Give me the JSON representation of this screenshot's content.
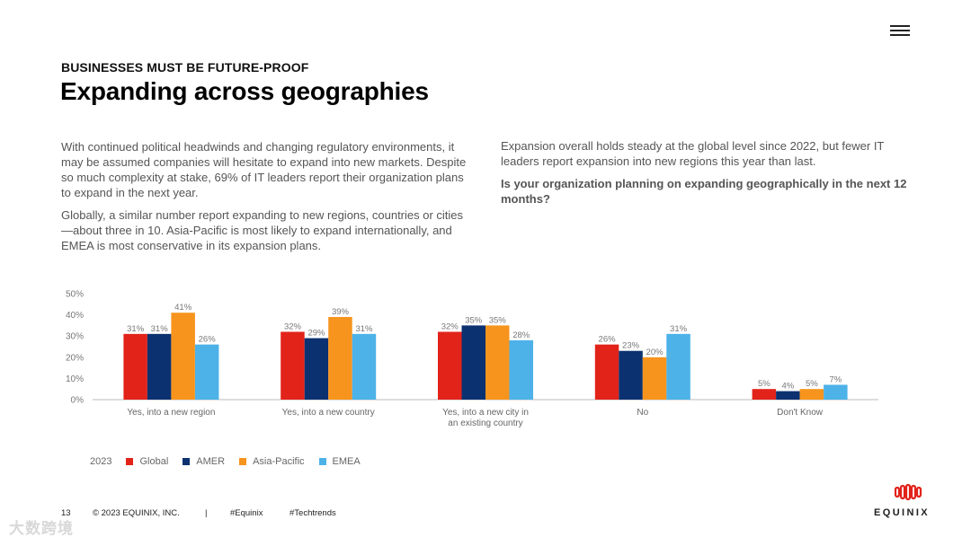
{
  "header": {
    "kicker": "BUSINESSES MUST BE FUTURE-PROOF",
    "title": "Expanding across geographies"
  },
  "body": {
    "left_p1": "With continued political headwinds and changing regulatory environments, it may be assumed companies will hesitate to expand into new markets. Despite so much complexity at stake, 69% of IT leaders report their organization plans to expand in the next year.",
    "left_p2": "Globally, a similar number report expanding to new regions, countries or cities—about three in 10. Asia-Pacific is most likely to expand internationally, and EMEA is most conservative in its expansion plans.",
    "right_p1": "Expansion overall holds steady at the global level since 2022, but fewer IT leaders report expansion into new regions this year than last.",
    "question": "Is your organization planning on expanding geographically in the next 12 months?"
  },
  "chart_data": {
    "type": "bar",
    "categories": [
      [
        "Yes, into a new region"
      ],
      [
        "Yes, into a new country"
      ],
      [
        "Yes, into a new city in",
        "an existing country"
      ],
      [
        "No"
      ],
      [
        "Don't Know"
      ]
    ],
    "series": [
      {
        "name": "Global",
        "color": "#e2231a",
        "values": [
          31,
          32,
          32,
          26,
          5
        ]
      },
      {
        "name": "AMER",
        "color": "#0b3170",
        "values": [
          31,
          29,
          35,
          23,
          4
        ]
      },
      {
        "name": "Asia-Pacific",
        "color": "#f7941d",
        "values": [
          41,
          39,
          35,
          20,
          5
        ]
      },
      {
        "name": "EMEA",
        "color": "#4db2e8",
        "values": [
          26,
          31,
          28,
          31,
          7
        ]
      }
    ],
    "yticks": [
      "0%",
      "10%",
      "20%",
      "30%",
      "40%",
      "50%"
    ],
    "ylim": [
      0,
      50
    ],
    "unit": "%",
    "legend_year": "2023",
    "legend_position": "bottom-left",
    "grid": false
  },
  "footer": {
    "page": "13",
    "copyright": "© 2023 EQUINIX, INC.",
    "separator": "|",
    "hashtag1": "#Equinix",
    "hashtag2": "#Techtrends"
  },
  "brand": {
    "name": "EQUINIX",
    "color": "#e2231a"
  },
  "watermark": "大数跨境",
  "icons": {
    "menu": "hamburger-menu-icon",
    "logo": "equinix-logo-icon"
  }
}
